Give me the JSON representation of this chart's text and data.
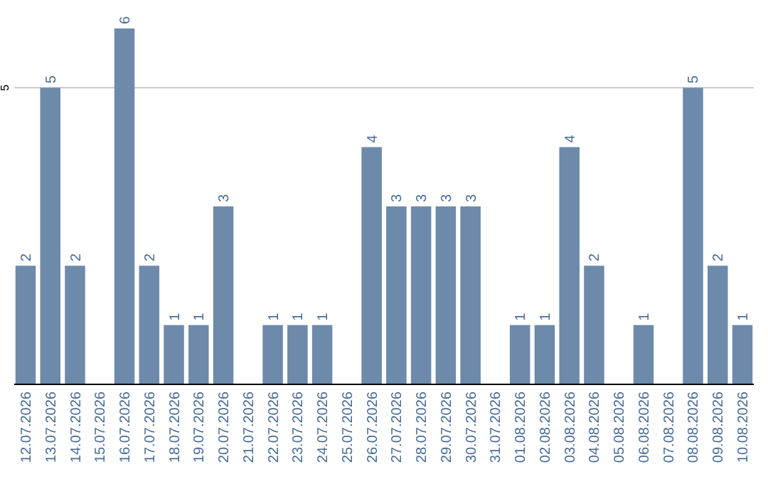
{
  "chart_data": {
    "type": "bar",
    "categories": [
      "12.07.2026",
      "13.07.2026",
      "14.07.2026",
      "15.07.2026",
      "16.07.2026",
      "17.07.2026",
      "18.07.2026",
      "19.07.2026",
      "20.07.2026",
      "21.07.2026",
      "22.07.2026",
      "23.07.2026",
      "24.07.2026",
      "25.07.2026",
      "26.07.2026",
      "27.07.2026",
      "28.07.2026",
      "29.07.2026",
      "30.07.2026",
      "31.07.2026",
      "01.08.2026",
      "02.08.2026",
      "03.08.2026",
      "04.08.2026",
      "05.08.2026",
      "06.08.2026",
      "07.08.2026",
      "08.08.2026",
      "09.08.2026",
      "10.08.2026"
    ],
    "values": [
      2,
      5,
      2,
      null,
      6,
      2,
      1,
      1,
      3,
      null,
      1,
      1,
      1,
      null,
      4,
      3,
      3,
      3,
      3,
      null,
      1,
      1,
      4,
      2,
      null,
      1,
      null,
      5,
      2,
      1
    ],
    "color": "#6d8aab",
    "ylim": [
      0,
      6
    ],
    "yticks": [
      5
    ],
    "grid": "y",
    "data_labels": true
  }
}
